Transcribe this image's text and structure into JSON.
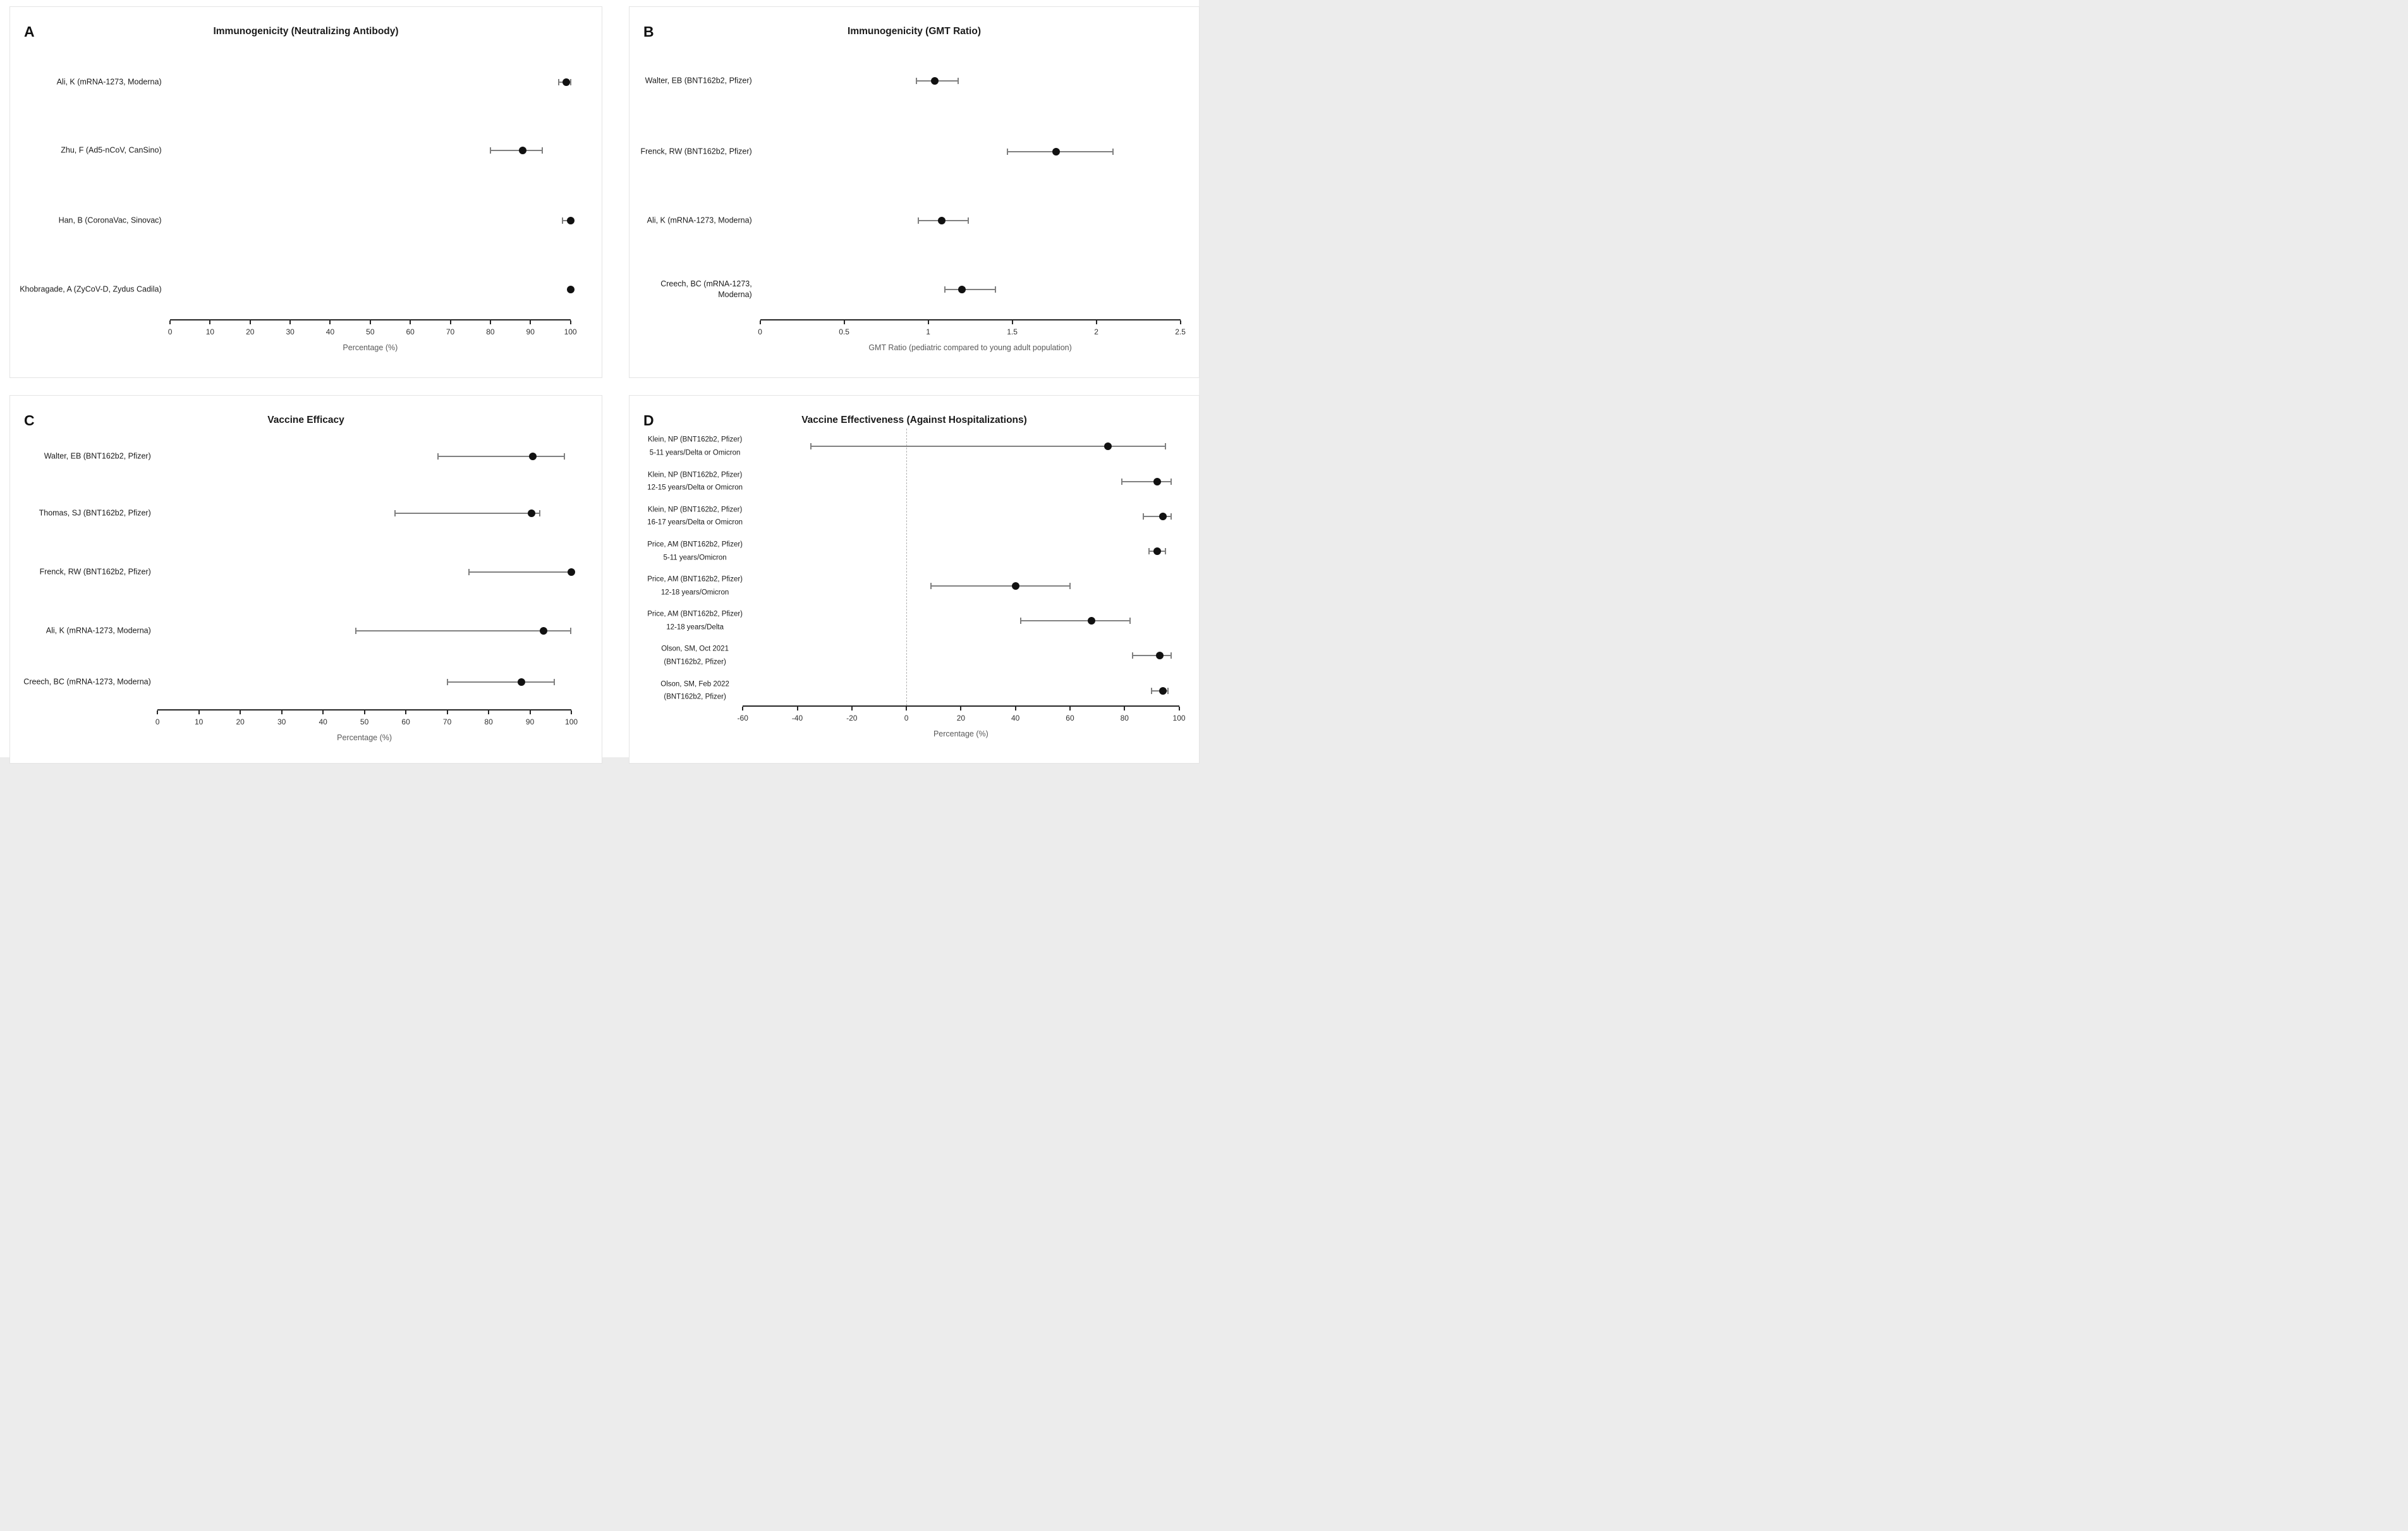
{
  "figure": {
    "background": "#ffffff",
    "page_margin_color": "#ececec",
    "panel_border_color": "#e4e4e4",
    "point_color": "#111111",
    "ci_color": "#808080",
    "axis_color": "#262626",
    "tick_label_color": "#303030",
    "axis_title_color": "#595959"
  },
  "chart_data": [
    {
      "letter": "A",
      "title": "Immunogenicity (Neutralizing Antibody)",
      "type": "scatter",
      "variant": "forest-plot",
      "xlabel": "Percentage (%)",
      "xlim": [
        0,
        100
      ],
      "xticks": [
        0,
        10,
        20,
        30,
        40,
        50,
        60,
        70,
        80,
        90,
        100
      ],
      "grid": false,
      "zero_line": false,
      "studies": [
        {
          "label": "Ali, K (mRNA-1273, Moderna)",
          "value": 99,
          "ci": [
            97,
            100
          ]
        },
        {
          "label": "Zhu, F (Ad5-nCoV, CanSino)",
          "value": 88,
          "ci": [
            80,
            93
          ]
        },
        {
          "label": "Han, B (CoronaVac, Sinovac)",
          "value": 100,
          "ci": [
            98,
            100
          ]
        },
        {
          "label": "Khobragade, A (ZyCoV-D, Zydus Cadila)",
          "value": 100,
          "ci": null
        }
      ]
    },
    {
      "letter": "B",
      "title": "Immunogenicity (GMT Ratio)",
      "type": "scatter",
      "variant": "forest-plot",
      "xlabel": "GMT Ratio (pediatric compared to young adult population)",
      "xlim": [
        0,
        2.5
      ],
      "xticks": [
        0,
        0.5,
        1,
        1.5,
        2,
        2.5
      ],
      "grid": false,
      "zero_line": false,
      "studies": [
        {
          "label": "Walter, EB (BNT162b2, Pfizer)",
          "value": 1.04,
          "ci": [
            0.93,
            1.18
          ]
        },
        {
          "label": "Frenck, RW (BNT162b2, Pfizer)",
          "value": 1.76,
          "ci": [
            1.47,
            2.1
          ]
        },
        {
          "label": "Ali, K (mRNA-1273, Moderna)",
          "value": 1.08,
          "ci": [
            0.94,
            1.24
          ]
        },
        {
          "label": "Creech, BC (mRNA-1273, Moderna)",
          "value": 1.2,
          "ci": [
            1.1,
            1.4
          ]
        }
      ]
    },
    {
      "letter": "C",
      "title": "Vaccine Efficacy",
      "type": "scatter",
      "variant": "forest-plot",
      "xlabel": "Percentage (%)",
      "xlim": [
        0,
        100
      ],
      "xticks": [
        0,
        10,
        20,
        30,
        40,
        50,
        60,
        70,
        80,
        90,
        100
      ],
      "grid": false,
      "zero_line": false,
      "studies": [
        {
          "label": "Walter, EB (BNT162b2, Pfizer)",
          "value": 90.7,
          "ci": [
            67.7,
            98.3
          ]
        },
        {
          "label": "Thomas, SJ (BNT162b2, Pfizer)",
          "value": 90.4,
          "ci": [
            57.4,
            92.4
          ]
        },
        {
          "label": "Frenck, RW (BNT162b2, Pfizer)",
          "value": 100,
          "ci": [
            75.3,
            100
          ]
        },
        {
          "label": "Ali, K (mRNA-1273, Moderna)",
          "value": 93.3,
          "ci": [
            47.9,
            99.9
          ]
        },
        {
          "label": "Creech, BC (mRNA-1273, Moderna)",
          "value": 88.0,
          "ci": [
            70.0,
            95.8
          ]
        }
      ]
    },
    {
      "letter": "D",
      "title": "Vaccine Effectiveness (Against Hospitalizations)",
      "type": "scatter",
      "variant": "forest-plot",
      "xlabel": "Percentage (%)",
      "xlim": [
        -60,
        100
      ],
      "xticks": [
        -60,
        -40,
        -20,
        0,
        20,
        40,
        60,
        80,
        100
      ],
      "grid": false,
      "zero_line": true,
      "studies": [
        {
          "label": [
            "Klein, NP (BNT162b2, Pfizer)",
            "5-11 years/Delta or Omicron"
          ],
          "value": 74,
          "ci": [
            -35,
            95
          ]
        },
        {
          "label": [
            "Klein, NP (BNT162b2, Pfizer)",
            "12-15 years/Delta or Omicron"
          ],
          "value": 92,
          "ci": [
            79,
            97
          ]
        },
        {
          "label": [
            "Klein, NP (BNT162b2, Pfizer)",
            "16-17 years/Delta or Omicron"
          ],
          "value": 94,
          "ci": [
            87,
            97
          ]
        },
        {
          "label": [
            "Price, AM (BNT162b2, Pfizer)",
            "5-11 years/Omicron"
          ],
          "value": 92,
          "ci": [
            89,
            95
          ]
        },
        {
          "label": [
            "Price, AM (BNT162b2, Pfizer)",
            "12-18 years/Omicron"
          ],
          "value": 40,
          "ci": [
            9,
            60
          ]
        },
        {
          "label": [
            "Price, AM (BNT162b2, Pfizer)",
            "12-18 years/Delta"
          ],
          "value": 68,
          "ci": [
            42,
            82
          ]
        },
        {
          "label": [
            "Olson, SM, Oct 2021",
            "(BNT162b2, Pfizer)"
          ],
          "value": 93,
          "ci": [
            83,
            97
          ]
        },
        {
          "label": [
            "Olson, SM, Feb 2022",
            "(BNT162b2, Pfizer)"
          ],
          "value": 94,
          "ci": [
            90,
            96
          ]
        }
      ]
    }
  ]
}
